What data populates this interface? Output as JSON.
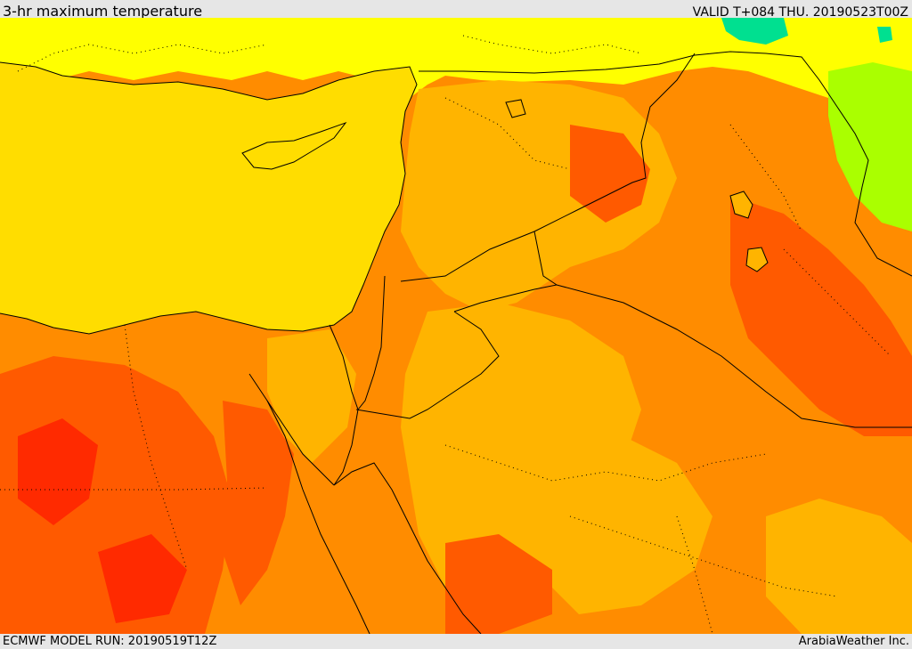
{
  "header": {
    "title": "3-hr maximum temperature",
    "valid": "VALID T+084 THU. 20190523T00Z"
  },
  "footer": {
    "model_run": "ECMWF MODEL RUN: 20190519T12Z",
    "credit": "ArabiaWeather Inc."
  },
  "colors": {
    "sea_yellow": "#ffdd00",
    "yellow": "#ffff00",
    "light_orange": "#ffb400",
    "orange": "#ff8c00",
    "dark_orange": "#ff5a00",
    "red": "#ff2a00",
    "green": "#aaff00",
    "teal": "#00e090",
    "border": "#000000"
  }
}
